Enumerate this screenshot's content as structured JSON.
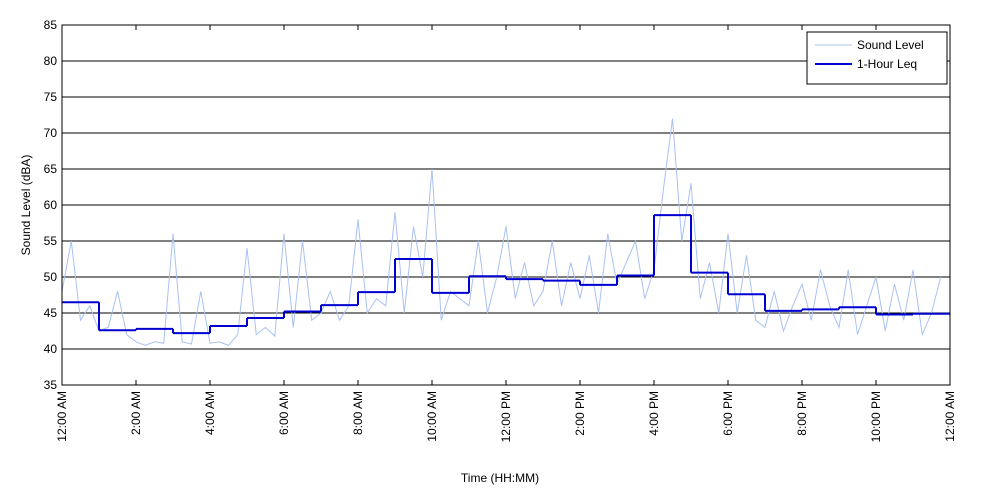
{
  "chart_data": {
    "type": "line",
    "xlabel": "Time (HH:MM)",
    "ylabel": "Sound Level (dBA)",
    "xlim": [
      0,
      24
    ],
    "xticks": [
      {
        "value": 0,
        "label": "12:00 AM"
      },
      {
        "value": 2,
        "label": "2:00 AM"
      },
      {
        "value": 4,
        "label": "4:00 AM"
      },
      {
        "value": 6,
        "label": "6:00 AM"
      },
      {
        "value": 8,
        "label": "8:00 AM"
      },
      {
        "value": 10,
        "label": "10:00 AM"
      },
      {
        "value": 12,
        "label": "12:00 PM"
      },
      {
        "value": 14,
        "label": "2:00 PM"
      },
      {
        "value": 16,
        "label": "4:00 PM"
      },
      {
        "value": 18,
        "label": "6:00 PM"
      },
      {
        "value": 20,
        "label": "8:00 PM"
      },
      {
        "value": 22,
        "label": "10:00 PM"
      },
      {
        "value": 24,
        "label": "12:00 AM"
      }
    ],
    "ylim": [
      35,
      85
    ],
    "yticks": [
      35,
      40,
      45,
      50,
      55,
      60,
      65,
      70,
      75,
      80,
      85
    ],
    "grid": true,
    "legend": "upper right",
    "series": [
      {
        "name": "Sound Level",
        "color": "#a9c1f2",
        "style": "line",
        "x": [
          0,
          0.25,
          0.5,
          0.75,
          1,
          1.25,
          1.5,
          1.75,
          2,
          2.25,
          2.5,
          2.75,
          3,
          3.25,
          3.5,
          3.75,
          4,
          4.25,
          4.5,
          4.75,
          5,
          5.25,
          5.5,
          5.75,
          6,
          6.25,
          6.5,
          6.75,
          7,
          7.25,
          7.5,
          7.75,
          8,
          8.25,
          8.5,
          8.75,
          9,
          9.25,
          9.5,
          9.75,
          10,
          10.25,
          10.5,
          10.75,
          11,
          11.25,
          11.5,
          11.75,
          12,
          12.25,
          12.5,
          12.75,
          13,
          13.25,
          13.5,
          13.75,
          14,
          14.25,
          14.5,
          14.75,
          15,
          15.25,
          15.5,
          15.75,
          16,
          16.25,
          16.5,
          16.75,
          17,
          17.25,
          17.5,
          17.75,
          18,
          18.25,
          18.5,
          18.75,
          19,
          19.25,
          19.5,
          19.75,
          20,
          20.25,
          20.5,
          20.75,
          21,
          21.25,
          21.5,
          21.75,
          22,
          22.25,
          22.5,
          22.75,
          23,
          23.25,
          23.5,
          23.75
        ],
        "values": [
          48,
          55,
          44,
          46,
          42.5,
          43,
          48,
          42,
          41,
          40.5,
          41,
          40.8,
          56,
          41,
          40.7,
          48,
          40.8,
          41,
          40.5,
          42,
          54,
          42,
          43,
          41.8,
          56,
          43,
          55,
          44,
          45,
          48,
          44,
          46,
          58,
          45,
          47,
          46,
          59,
          45,
          57,
          50,
          65,
          44,
          48,
          47,
          46,
          55,
          45,
          50,
          57,
          47,
          52,
          46,
          48,
          55,
          46,
          52,
          47,
          53,
          45,
          56,
          49,
          52,
          55,
          47,
          51,
          62,
          72,
          55,
          63,
          47,
          52,
          45,
          56,
          45,
          53,
          44,
          43,
          48,
          42.5,
          46,
          49,
          44,
          51,
          46,
          43,
          51,
          42,
          46,
          50,
          42.5,
          49,
          44,
          51,
          42,
          45,
          50
        ]
      },
      {
        "name": "1-Hour Leq",
        "color": "#0000d0",
        "style": "step",
        "x": [
          0,
          1,
          2,
          3,
          4,
          5,
          6,
          7,
          8,
          9,
          10,
          11,
          12,
          13,
          14,
          15,
          16,
          17,
          18,
          19,
          20,
          21,
          22,
          23
        ],
        "values": [
          46.5,
          42.6,
          42.8,
          42.2,
          43.2,
          44.3,
          45.2,
          46.1,
          47.9,
          52.5,
          47.8,
          50.1,
          49.7,
          49.5,
          48.9,
          50.2,
          58.6,
          50.6,
          47.6,
          45.3,
          45.5,
          45.8,
          44.8,
          44.9
        ]
      }
    ]
  }
}
